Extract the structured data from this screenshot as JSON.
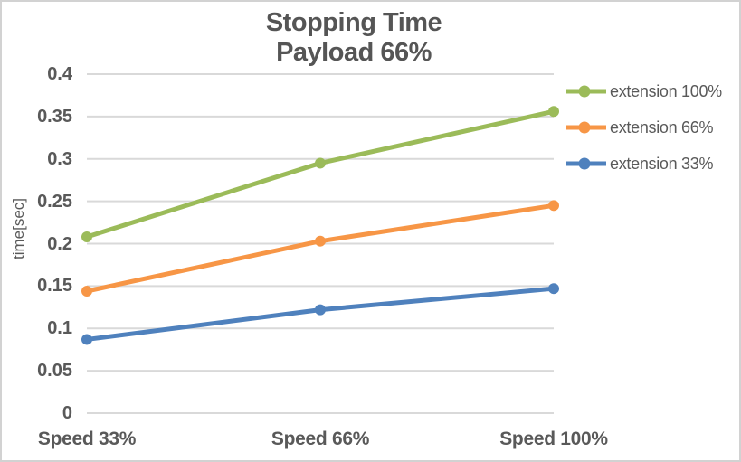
{
  "chart_data": {
    "type": "line",
    "title": "Stopping Time",
    "subtitle": "Payload 66%",
    "categories": [
      "Speed 33%",
      "Speed 66%",
      "Speed 100%"
    ],
    "series": [
      {
        "name": "extension 100%",
        "color": "#9BBB59",
        "values": [
          0.208,
          0.295,
          0.356
        ]
      },
      {
        "name": "extension 66%",
        "color": "#F79646",
        "values": [
          0.144,
          0.203,
          0.245
        ]
      },
      {
        "name": "extension 33%",
        "color": "#4F81BD",
        "values": [
          0.087,
          0.122,
          0.147
        ]
      }
    ],
    "xlabel": "",
    "ylabel": "time[sec]",
    "ylim": [
      0,
      0.4
    ],
    "ytick_step": 0.05,
    "yticks": [
      "0",
      "0.05",
      "0.1",
      "0.15",
      "0.2",
      "0.25",
      "0.3",
      "0.35",
      "0.4"
    ],
    "grid": true,
    "legend_position": "right",
    "colors": {
      "text": "#595959",
      "title": "#555555",
      "grid": "#D9D9D9",
      "border": "#D2D2D2",
      "background": "#FFFFFF"
    }
  }
}
